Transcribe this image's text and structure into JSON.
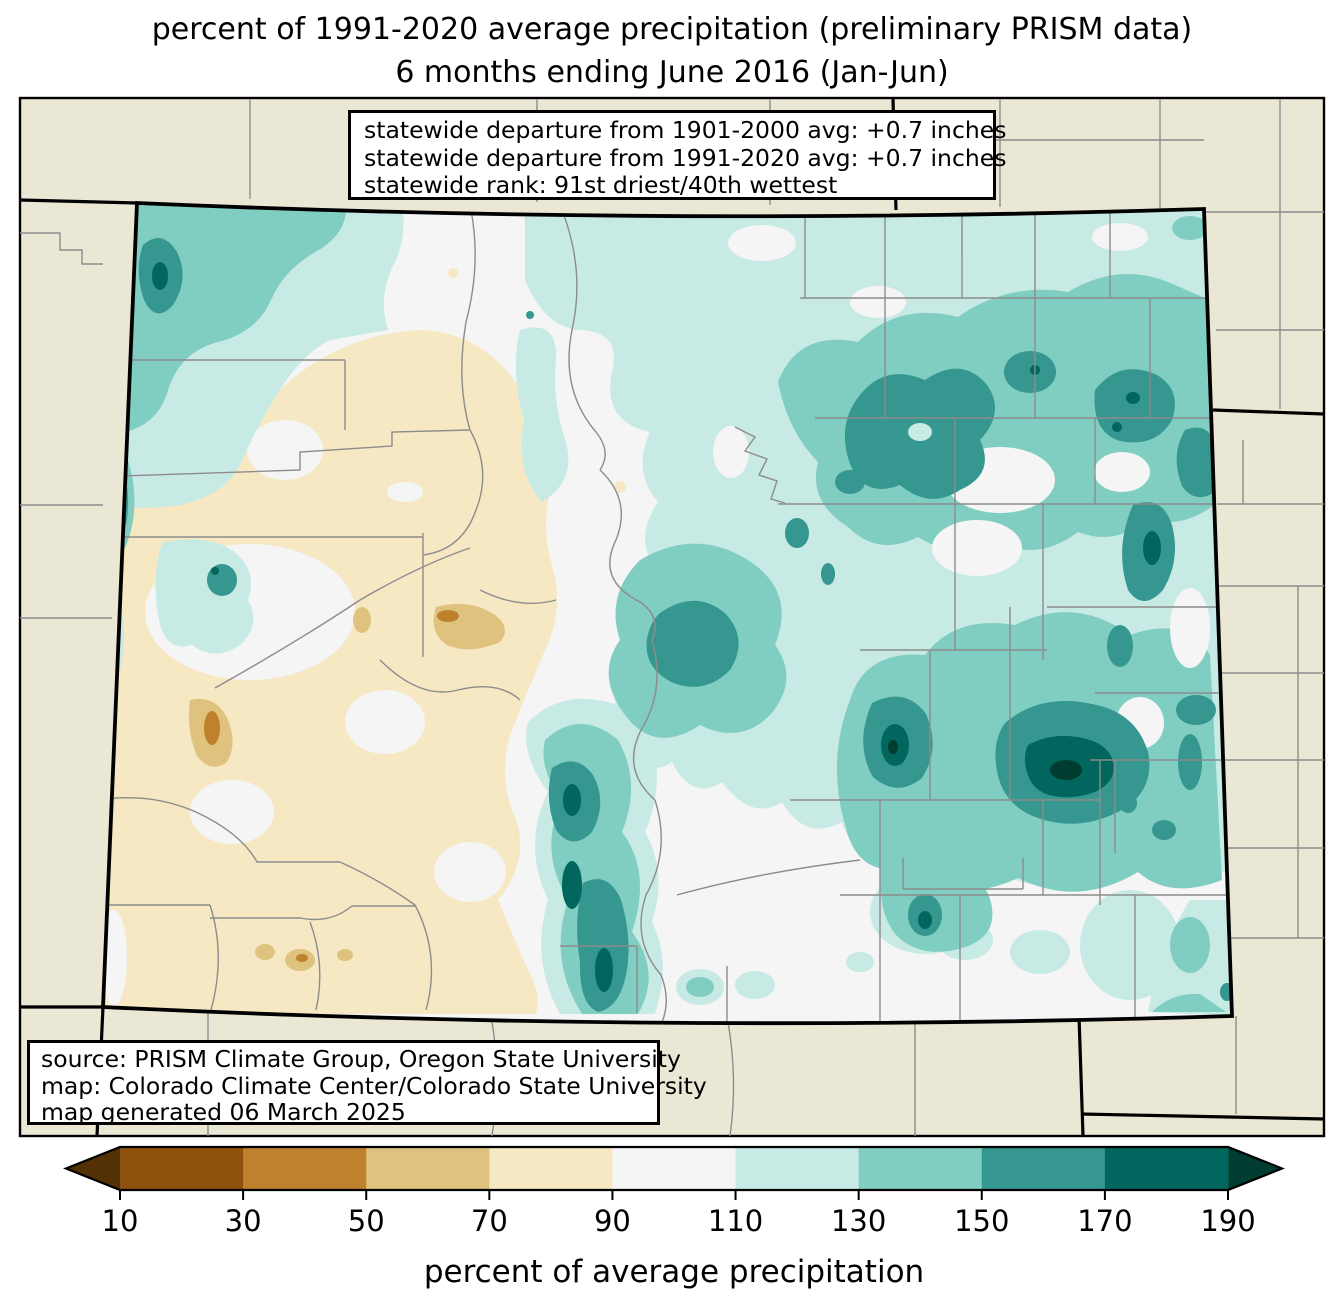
{
  "title": {
    "line1": "percent of 1991-2020 average precipitation (preliminary PRISM data)",
    "line2": "6 months ending June 2016 (Jan-Jun)"
  },
  "stats_box": {
    "lines": [
      "statewide departure from 1901-2000 avg: +0.7 inches",
      "statewide departure from 1991-2020 avg: +0.7 inches",
      "statewide rank: 91st driest/40th wettest"
    ]
  },
  "source_box": {
    "lines": [
      "source: PRISM Climate Group, Oregon State University",
      "map: Colorado Climate Center/Colorado State University",
      "map generated 06 March 2025"
    ]
  },
  "colorbar": {
    "label": "percent of average precipitation",
    "ticks": [
      "10",
      "30",
      "50",
      "70",
      "90",
      "110",
      "130",
      "150",
      "170",
      "190"
    ],
    "segment_colors": [
      "#8c510a",
      "#bf812d",
      "#dfc27d",
      "#f6e8c3",
      "#f5f5f5",
      "#c7eae5",
      "#80cdc1",
      "#35978f",
      "#01665e"
    ],
    "left_arrow_color": "#543005",
    "right_arrow_color": "#003c30",
    "outline_color": "#000000",
    "tick_color": "#000000"
  },
  "map": {
    "outside_fill": "#ebe7d5",
    "state_border_color": "#000000",
    "neighbor_border_color": "#000000",
    "county_line_color": "#8c8c8c",
    "frame_color": "#000000",
    "levels": {
      "p30_50": "#bf812d",
      "p50_70": "#dfc27d",
      "p70_90": "#f6e8c3",
      "p90_110": "#f5f5f5",
      "p110_130": "#c7eae5",
      "p130_150": "#80cdc1",
      "p150_170": "#35978f",
      "p170_190": "#01665e",
      "p190plus": "#003c30"
    }
  }
}
